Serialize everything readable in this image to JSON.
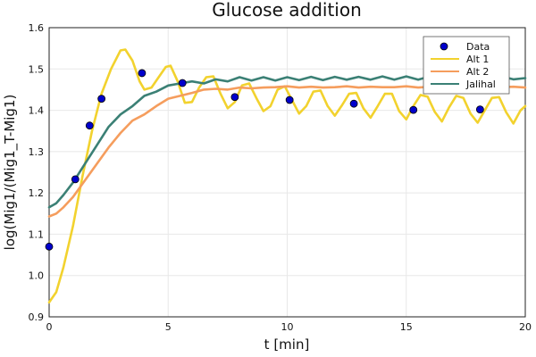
{
  "chart_data": {
    "type": "line",
    "title": "Glucose addition",
    "xlabel": "t [min]",
    "ylabel": "log(Mig1/(Mig1_T-Mig1)",
    "xlim": [
      0,
      20
    ],
    "ylim": [
      0.9,
      1.6
    ],
    "xticks": [
      0,
      5,
      10,
      15,
      20
    ],
    "xtick_labels": [
      "0",
      "5",
      "10",
      "15",
      "20"
    ],
    "yticks": [
      0.9,
      1.0,
      1.1,
      1.2,
      1.3,
      1.4,
      1.5,
      1.6
    ],
    "ytick_labels": [
      "0.9",
      "1.0",
      "1.1",
      "1.2",
      "1.3",
      "1.4",
      "1.5",
      "1.6"
    ],
    "grid": true,
    "legend_position": "top-right",
    "legend": [
      "Data",
      "Alt 1",
      "Alt 2",
      "Jalihal"
    ],
    "series": [
      {
        "name": "Data",
        "kind": "scatter",
        "color": "#0000cc",
        "x": [
          0.0,
          1.1,
          1.7,
          2.2,
          3.9,
          5.6,
          7.8,
          10.1,
          12.8,
          15.3,
          18.1
        ],
        "y": [
          1.07,
          1.233,
          1.363,
          1.428,
          1.49,
          1.466,
          1.432,
          1.425,
          1.416,
          1.401,
          1.402
        ]
      },
      {
        "name": "Alt 1",
        "kind": "line",
        "color": "#f2d22e",
        "x": [
          0.0,
          0.3,
          0.6,
          1.0,
          1.4,
          1.8,
          2.2,
          2.6,
          3.0,
          3.2,
          3.5,
          3.8,
          4.0,
          4.3,
          4.6,
          4.9,
          5.1,
          5.4,
          5.7,
          6.0,
          6.3,
          6.6,
          6.9,
          7.2,
          7.5,
          7.8,
          8.1,
          8.4,
          8.7,
          9.0,
          9.3,
          9.6,
          9.9,
          10.2,
          10.5,
          10.8,
          11.1,
          11.4,
          11.7,
          12.0,
          12.3,
          12.6,
          12.9,
          13.2,
          13.5,
          13.8,
          14.1,
          14.4,
          14.7,
          15.0,
          15.3,
          15.6,
          15.9,
          16.2,
          16.5,
          16.8,
          17.1,
          17.4,
          17.7,
          18.0,
          18.3,
          18.6,
          18.9,
          19.2,
          19.5,
          19.8,
          20.0
        ],
        "y": [
          0.935,
          0.96,
          1.02,
          1.12,
          1.24,
          1.35,
          1.44,
          1.5,
          1.545,
          1.547,
          1.52,
          1.47,
          1.45,
          1.455,
          1.48,
          1.505,
          1.508,
          1.47,
          1.418,
          1.42,
          1.455,
          1.48,
          1.482,
          1.44,
          1.405,
          1.42,
          1.46,
          1.465,
          1.43,
          1.398,
          1.41,
          1.45,
          1.458,
          1.425,
          1.392,
          1.41,
          1.445,
          1.448,
          1.41,
          1.387,
          1.412,
          1.44,
          1.442,
          1.405,
          1.382,
          1.41,
          1.44,
          1.44,
          1.398,
          1.378,
          1.41,
          1.437,
          1.433,
          1.396,
          1.373,
          1.407,
          1.435,
          1.43,
          1.392,
          1.37,
          1.4,
          1.43,
          1.432,
          1.395,
          1.368,
          1.4,
          1.41
        ]
      },
      {
        "name": "Alt 2",
        "kind": "line",
        "color": "#f59d5d",
        "x": [
          0.0,
          0.3,
          0.6,
          1.0,
          1.5,
          2.0,
          2.5,
          3.0,
          3.5,
          4.0,
          4.5,
          5.0,
          5.5,
          6.0,
          6.5,
          7.0,
          7.5,
          8.0,
          8.5,
          9.0,
          9.5,
          10.0,
          10.5,
          11.0,
          11.5,
          12.0,
          12.5,
          13.0,
          13.5,
          14.0,
          14.5,
          15.0,
          15.5,
          16.0,
          16.5,
          17.0,
          17.5,
          18.0,
          18.5,
          19.0,
          19.5,
          20.0
        ],
        "y": [
          1.143,
          1.15,
          1.165,
          1.19,
          1.23,
          1.27,
          1.31,
          1.345,
          1.375,
          1.39,
          1.41,
          1.428,
          1.435,
          1.442,
          1.45,
          1.452,
          1.45,
          1.455,
          1.453,
          1.455,
          1.456,
          1.458,
          1.455,
          1.457,
          1.455,
          1.456,
          1.458,
          1.455,
          1.457,
          1.456,
          1.456,
          1.458,
          1.455,
          1.457,
          1.456,
          1.457,
          1.457,
          1.455,
          1.457,
          1.456,
          1.457,
          1.455
        ]
      },
      {
        "name": "Jalihal",
        "kind": "line",
        "color": "#3b8075",
        "x": [
          0.0,
          0.3,
          0.6,
          1.0,
          1.5,
          2.0,
          2.5,
          3.0,
          3.5,
          4.0,
          4.5,
          5.0,
          5.5,
          6.0,
          6.5,
          7.0,
          7.5,
          8.0,
          8.5,
          9.0,
          9.5,
          10.0,
          10.5,
          11.0,
          11.5,
          12.0,
          12.5,
          13.0,
          13.5,
          14.0,
          14.5,
          15.0,
          15.5,
          16.0,
          16.5,
          17.0,
          17.5,
          18.0,
          18.5,
          19.0,
          19.5,
          20.0
        ],
        "y": [
          1.165,
          1.175,
          1.195,
          1.225,
          1.27,
          1.315,
          1.36,
          1.39,
          1.41,
          1.435,
          1.445,
          1.46,
          1.465,
          1.47,
          1.465,
          1.475,
          1.47,
          1.48,
          1.472,
          1.48,
          1.472,
          1.48,
          1.473,
          1.481,
          1.473,
          1.481,
          1.474,
          1.481,
          1.474,
          1.482,
          1.474,
          1.482,
          1.474,
          1.482,
          1.474,
          1.482,
          1.475,
          1.482,
          1.475,
          1.482,
          1.475,
          1.478
        ]
      }
    ]
  }
}
